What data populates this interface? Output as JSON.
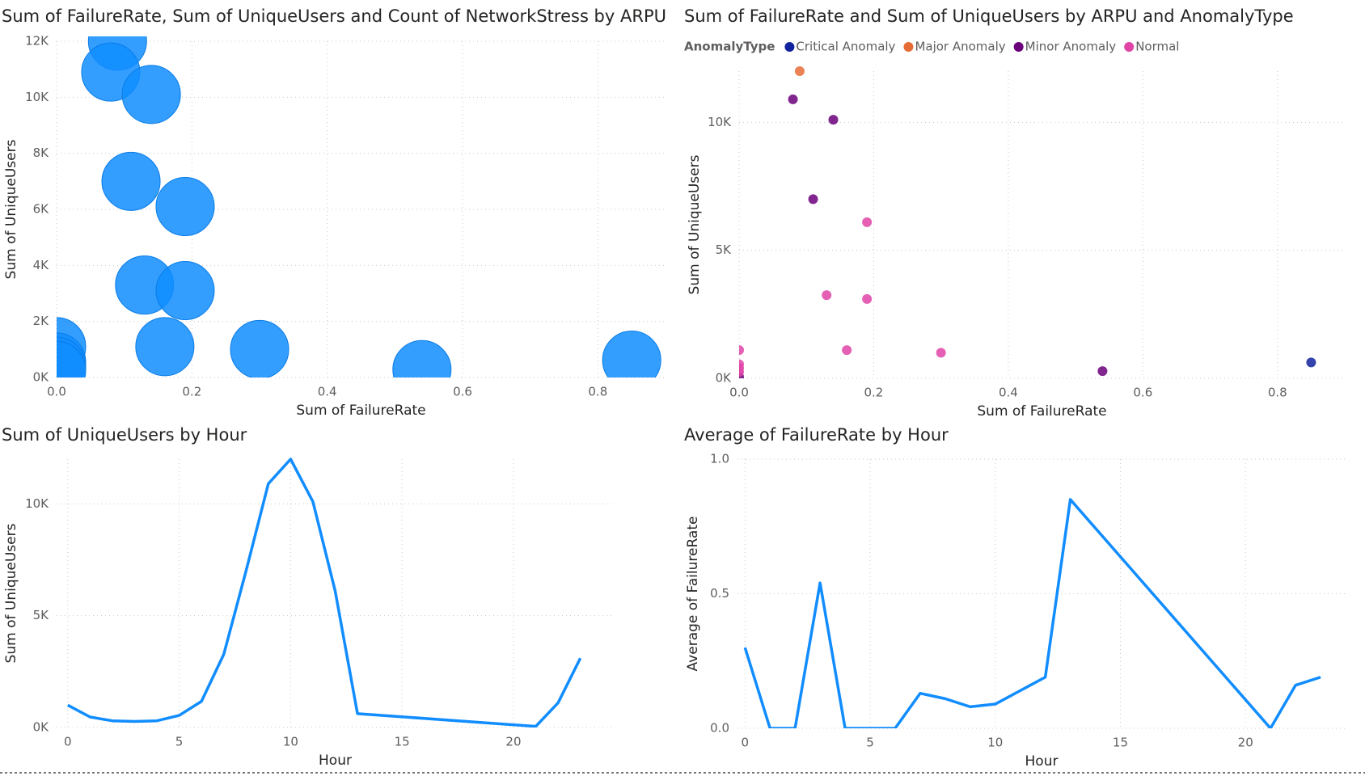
{
  "chart_data": [
    {
      "type": "scatter",
      "title": "Sum of FailureRate, Sum of UniqueUsers and Count of NetworkStress by ARPU",
      "x_label": "Sum of FailureRate",
      "y_label": "Sum of UniqueUsers",
      "xlim": [
        0,
        0.9
      ],
      "ylim": [
        0,
        12000
      ],
      "xticks": [
        {
          "value": 0,
          "label": "0.0"
        },
        {
          "value": 0.2,
          "label": "0.2"
        },
        {
          "value": 0.4,
          "label": "0.4"
        },
        {
          "value": 0.6,
          "label": "0.6"
        },
        {
          "value": 0.8,
          "label": "0.8"
        }
      ],
      "yticks": [
        {
          "value": 0,
          "label": "0K"
        },
        {
          "value": 2000,
          "label": "2K"
        },
        {
          "value": 4000,
          "label": "4K"
        },
        {
          "value": 6000,
          "label": "6K"
        },
        {
          "value": 8000,
          "label": "8K"
        },
        {
          "value": 10000,
          "label": "10K"
        },
        {
          "value": 12000,
          "label": "12K"
        }
      ],
      "grid": true,
      "series": [
        {
          "color": "#118dff",
          "x": [
            0.09,
            0.08,
            0.14,
            0.11,
            0.19,
            0.13,
            0.19,
            0.16,
            0.3,
            0.54,
            0.85,
            0,
            0,
            0,
            0
          ],
          "values": [
            12000,
            10900,
            10100,
            7000,
            6100,
            3300,
            3100,
            1100,
            1000,
            280,
            620,
            1100,
            550,
            400,
            250
          ],
          "sizes": [
            1,
            1,
            1,
            1,
            1,
            1,
            1,
            1,
            1,
            1,
            1,
            1,
            1,
            1,
            1
          ]
        }
      ]
    },
    {
      "type": "scatter",
      "title": "Sum of FailureRate and Sum of UniqueUsers by ARPU and AnomalyType",
      "x_label": "Sum of FailureRate",
      "y_label": "Sum of UniqueUsers",
      "legend_title": "AnomalyType",
      "xlim": [
        0,
        0.9
      ],
      "ylim": [
        0,
        12000
      ],
      "xticks": [
        {
          "value": 0,
          "label": "0.0"
        },
        {
          "value": 0.2,
          "label": "0.2"
        },
        {
          "value": 0.4,
          "label": "0.4"
        },
        {
          "value": 0.6,
          "label": "0.6"
        },
        {
          "value": 0.8,
          "label": "0.8"
        }
      ],
      "yticks": [
        {
          "value": 0,
          "label": "0K"
        },
        {
          "value": 5000,
          "label": "5K"
        },
        {
          "value": 10000,
          "label": "10K"
        }
      ],
      "grid": true,
      "series": [
        {
          "name": "Critical Anomaly",
          "color": "#12239e",
          "x": [
            0.85
          ],
          "values": [
            620
          ]
        },
        {
          "name": "Major Anomaly",
          "color": "#e66c37",
          "x": [
            0.09
          ],
          "values": [
            12000
          ]
        },
        {
          "name": "Minor Anomaly",
          "color": "#6b007b",
          "x": [
            0.08,
            0.14,
            0.11,
            0.54,
            0
          ],
          "values": [
            10900,
            10100,
            7000,
            280,
            50
          ]
        },
        {
          "name": "Normal",
          "color": "#e044a7",
          "x": [
            0.19,
            0.13,
            0.19,
            0.16,
            0.3,
            0,
            0,
            0,
            0
          ],
          "values": [
            6100,
            3250,
            3100,
            1100,
            1000,
            1100,
            550,
            400,
            250
          ]
        }
      ]
    },
    {
      "type": "line",
      "title": "Sum of UniqueUsers by Hour",
      "x_label": "Hour",
      "y_label": "Sum of UniqueUsers",
      "xlim": [
        -0.5,
        24.5
      ],
      "ylim": [
        0,
        12000
      ],
      "xticks": [
        0,
        5,
        10,
        15,
        20
      ],
      "yticks": [
        {
          "value": 0,
          "label": "0K"
        },
        {
          "value": 5000,
          "label": "5K"
        },
        {
          "value": 10000,
          "label": "10K"
        }
      ],
      "grid": true,
      "series": [
        {
          "color": "#118dff",
          "x": [
            0,
            1,
            2,
            3,
            4,
            5,
            6,
            7,
            8,
            9,
            10,
            11,
            12,
            13,
            21,
            22,
            23
          ],
          "values": [
            1000,
            470,
            300,
            270,
            300,
            540,
            1170,
            3270,
            7000,
            10900,
            12000,
            10100,
            6100,
            620,
            50,
            1100,
            3100
          ]
        }
      ]
    },
    {
      "type": "line",
      "title": "Average of FailureRate by Hour",
      "x_label": "Hour",
      "y_label": "Average of FailureRate",
      "xlim": [
        -0.3,
        24
      ],
      "ylim": [
        0,
        1
      ],
      "xticks": [
        0,
        5,
        10,
        15,
        20
      ],
      "yticks": [
        {
          "value": 0,
          "label": "0.0"
        },
        {
          "value": 0.5,
          "label": "0.5"
        },
        {
          "value": 1,
          "label": "1.0"
        }
      ],
      "grid": true,
      "series": [
        {
          "color": "#118dff",
          "x": [
            0,
            1,
            2,
            3,
            4,
            5,
            6,
            7,
            8,
            9,
            10,
            11,
            12,
            13,
            21,
            22,
            23
          ],
          "values": [
            0.3,
            0,
            0,
            0.54,
            0,
            0,
            0,
            0.13,
            0.11,
            0.08,
            0.09,
            0.14,
            0.19,
            0.85,
            0,
            0.16,
            0.19
          ]
        }
      ]
    }
  ]
}
